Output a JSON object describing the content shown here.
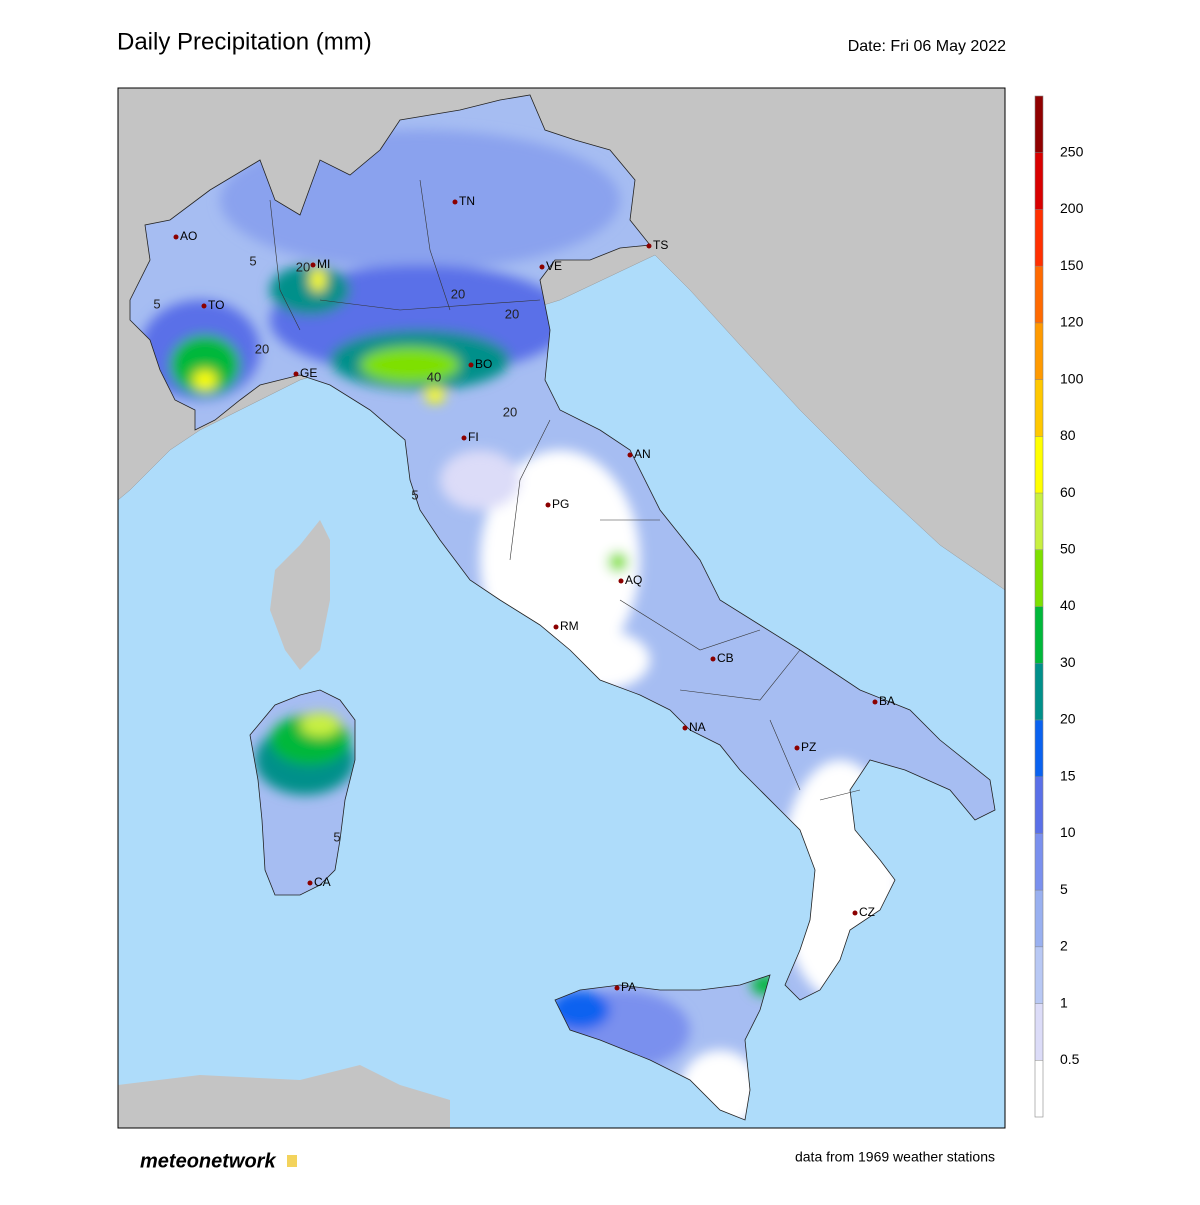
{
  "header": {
    "title": "Daily Precipitation (mm)",
    "date": "Date: Fri 06 May 2022"
  },
  "map": {
    "cities": [
      "AO",
      "MI",
      "TO",
      "GE",
      "TN",
      "VE",
      "TS",
      "BO",
      "FI",
      "AN",
      "PG",
      "AQ",
      "RM",
      "CB",
      "BA",
      "NA",
      "PZ",
      "CZ",
      "CA",
      "PA"
    ],
    "contour_labels": [
      5,
      5,
      5,
      5,
      20,
      20,
      20,
      20,
      20,
      40
    ]
  },
  "legend": {
    "ticks": [
      0.5,
      1,
      2,
      5,
      10,
      15,
      20,
      30,
      40,
      50,
      60,
      80,
      100,
      120,
      150,
      200,
      250
    ],
    "colors": [
      "#ffffff",
      "#dcdcf8",
      "#b8c8f4",
      "#99b0f0",
      "#7a90ee",
      "#5a70e8",
      "#0a62f0",
      "#00908a",
      "#00b83a",
      "#7ee000",
      "#c8f040",
      "#ffff00",
      "#ffc800",
      "#ff9a00",
      "#ff6a00",
      "#ff3000",
      "#d80000",
      "#900000"
    ]
  },
  "footer": {
    "logo": "meteonetwork",
    "source": "data from 1969 weather stations"
  }
}
